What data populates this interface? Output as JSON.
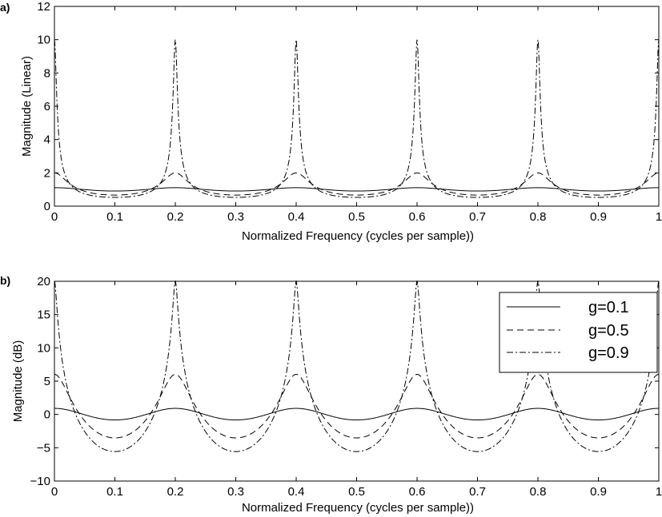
{
  "chart_data": [
    {
      "type": "line",
      "panel_label": "a)",
      "xlabel": "Normalized Frequency (cycles per sample))",
      "ylabel": "Magnitude (Linear)",
      "xlim": [
        0,
        1
      ],
      "ylim": [
        0,
        12
      ],
      "xticks": [
        0,
        0.1,
        0.2,
        0.3,
        0.4,
        0.5,
        0.6,
        0.7,
        0.8,
        0.9,
        1
      ],
      "xtick_labels": [
        "0",
        "0.1",
        "0.2",
        "0.3",
        "0.4",
        "0.5",
        "0.6",
        "0.7",
        "0.8",
        "0.9",
        "1"
      ],
      "yticks": [
        0,
        2,
        4,
        6,
        8,
        10,
        12
      ],
      "ytick_labels": [
        "0",
        "2",
        "4",
        "6",
        "8",
        "10",
        "12"
      ],
      "series": [
        {
          "name": "g=0.1",
          "g": 0.1,
          "style": "solid"
        },
        {
          "name": "g=0.5",
          "g": 0.5,
          "style": "dashed"
        },
        {
          "name": "g=0.9",
          "g": 0.9,
          "style": "dashdot"
        }
      ],
      "comb_delay_samples": 5,
      "scale": "linear",
      "legend": null
    },
    {
      "type": "line",
      "panel_label": "b)",
      "xlabel": "Normalized Frequency (cycles per sample))",
      "ylabel": "Magnitude (dB)",
      "xlim": [
        0,
        1
      ],
      "ylim": [
        -10,
        20
      ],
      "xticks": [
        0,
        0.1,
        0.2,
        0.3,
        0.4,
        0.5,
        0.6,
        0.7,
        0.8,
        0.9,
        1
      ],
      "xtick_labels": [
        "0",
        "0.1",
        "0.2",
        "0.3",
        "0.4",
        "0.5",
        "0.6",
        "0.7",
        "0.8",
        "0.9",
        "1"
      ],
      "yticks": [
        -10,
        -5,
        0,
        5,
        10,
        15,
        20
      ],
      "ytick_labels": [
        "−10",
        "−5",
        "0",
        "5",
        "10",
        "15",
        "20"
      ],
      "series": [
        {
          "name": "g=0.1",
          "g": 0.1,
          "style": "solid"
        },
        {
          "name": "g=0.5",
          "g": 0.5,
          "style": "dashed"
        },
        {
          "name": "g=0.9",
          "g": 0.9,
          "style": "dashdot"
        }
      ],
      "comb_delay_samples": 5,
      "scale": "dB",
      "legend": {
        "placement": "top-right",
        "entries": [
          "g=0.1",
          "g=0.5",
          "g=0.9"
        ]
      }
    }
  ]
}
